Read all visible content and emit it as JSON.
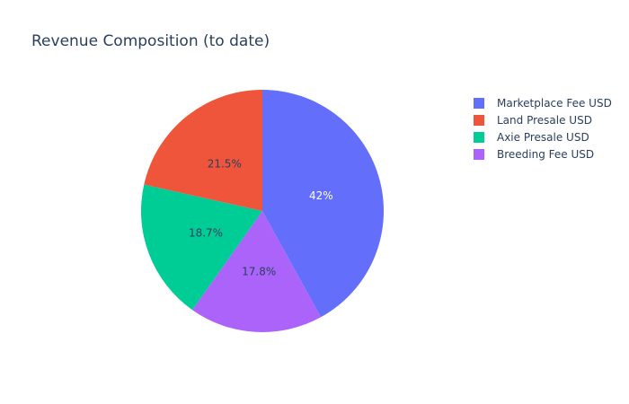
{
  "chart_data": {
    "type": "pie",
    "title": "Revenue Composition (to date)",
    "slices": [
      {
        "label": "Marketplace Fee USD",
        "percent": 42.0,
        "percent_text": "42%",
        "color": "#636efa",
        "label_color": "#ffffff"
      },
      {
        "label": "Breeding Fee USD",
        "percent": 17.8,
        "percent_text": "17.8%",
        "color": "#ab63fa",
        "label_color": "#2a3f5f"
      },
      {
        "label": "Axie Presale USD",
        "percent": 18.7,
        "percent_text": "18.7%",
        "color": "#00cc96",
        "label_color": "#2a3f5f"
      },
      {
        "label": "Land Presale USD",
        "percent": 21.5,
        "percent_text": "21.5%",
        "color": "#ef553b",
        "label_color": "#2a3f5f"
      }
    ],
    "legend": {
      "placement": "top-right",
      "items": [
        {
          "label": "Marketplace Fee USD",
          "color": "#636efa"
        },
        {
          "label": "Land Presale USD",
          "color": "#ef553b"
        },
        {
          "label": "Axie Presale USD",
          "color": "#00cc96"
        },
        {
          "label": "Breeding Fee USD",
          "color": "#ab63fa"
        }
      ]
    }
  }
}
